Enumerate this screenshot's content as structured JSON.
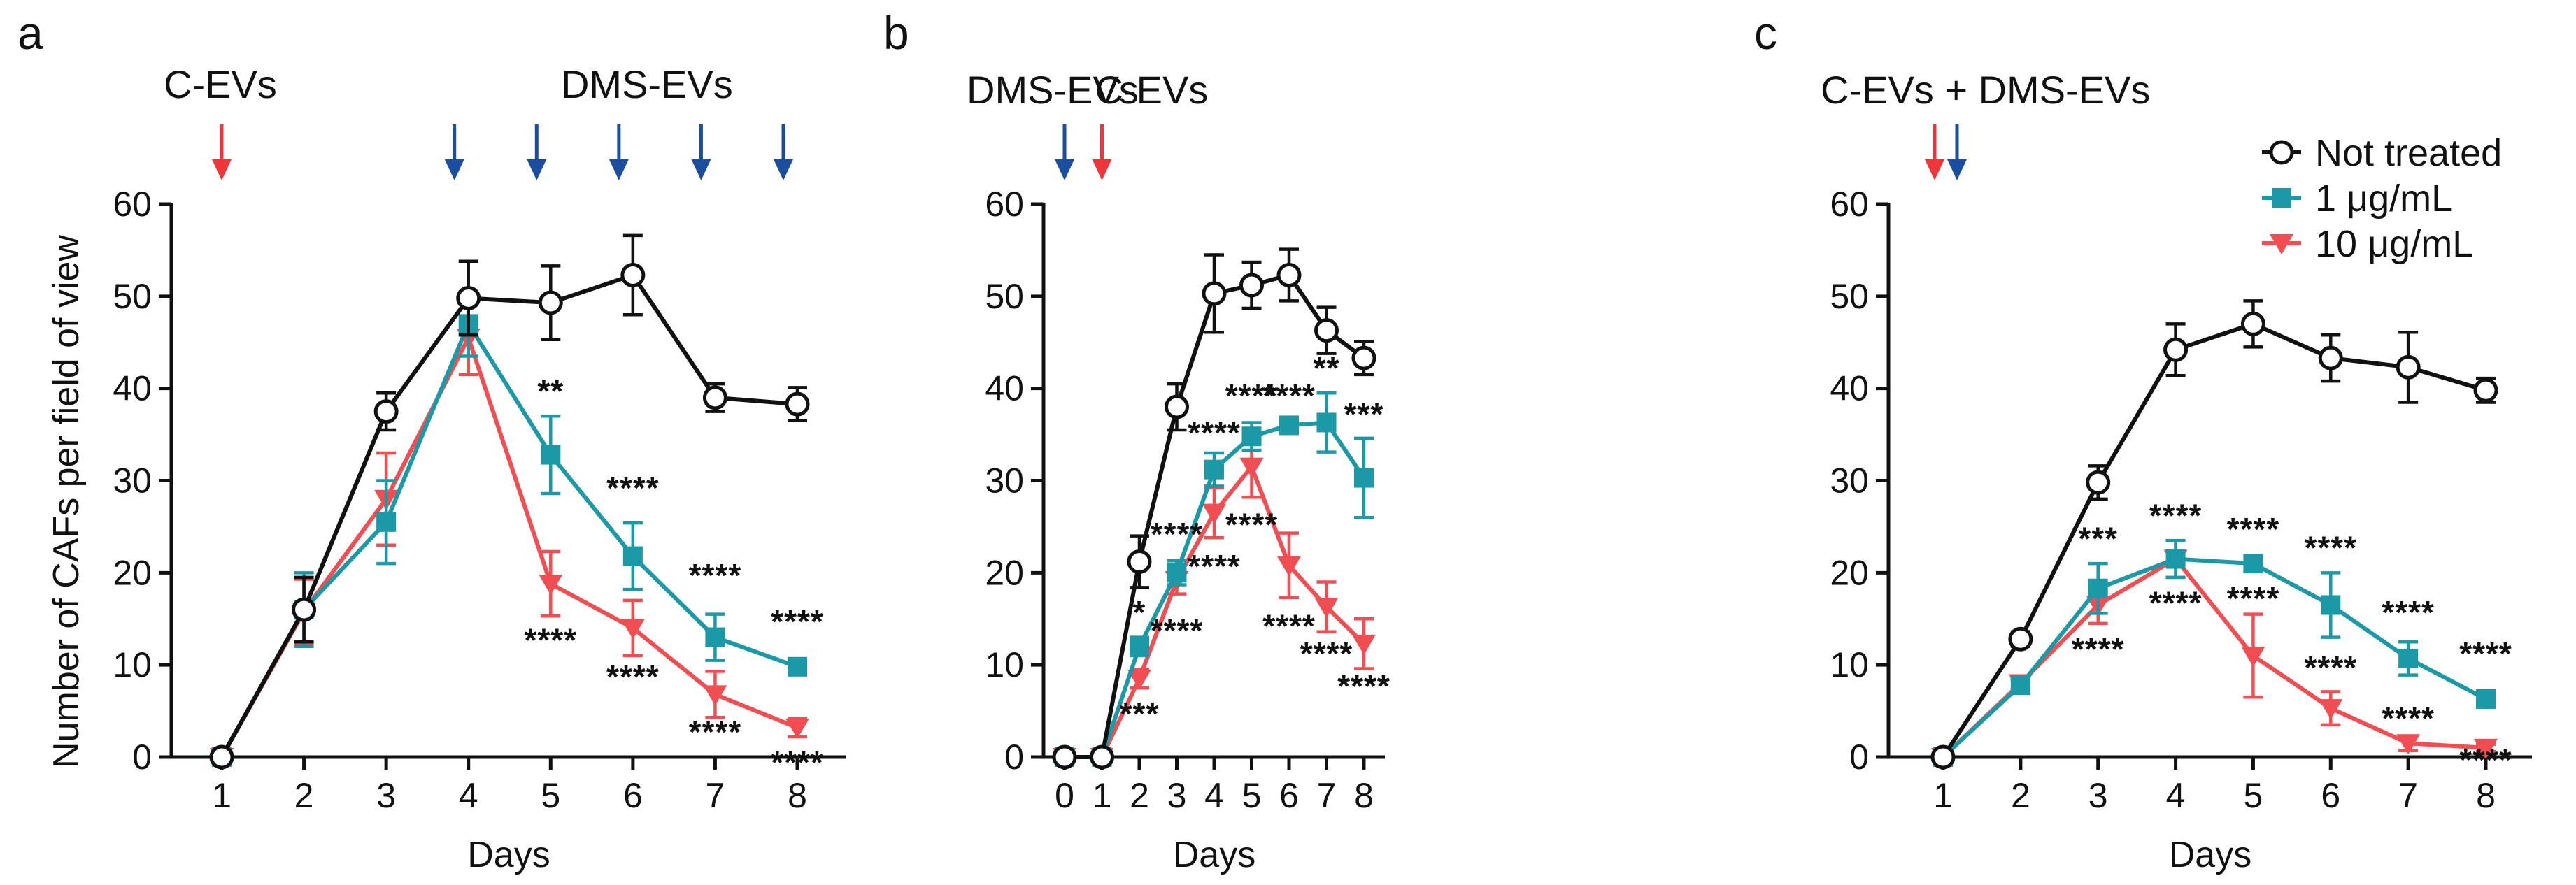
{
  "colors": {
    "not_treated": "#111111",
    "low_dose": "#1b99a6",
    "high_dose": "#f04e52",
    "arrow_red": "#f0363a",
    "arrow_blue": "#1c4ea0"
  },
  "ylabel": "Number of CAFs per field of view",
  "legend": {
    "items": [
      {
        "label": "Not treated",
        "color": "#111111",
        "marker": "circle"
      },
      {
        "label": "1 μg/mL",
        "color": "#1b99a6",
        "marker": "square"
      },
      {
        "label": "10 μg/mL",
        "color": "#f04e52",
        "marker": "triangle"
      }
    ]
  },
  "chart_data": [
    {
      "panel": "a",
      "type": "line",
      "xlabel": "Days",
      "ylim": [
        0,
        60
      ],
      "yticks": [
        0,
        10,
        20,
        30,
        40,
        50,
        60
      ],
      "xticks": [
        1,
        2,
        3,
        4,
        5,
        6,
        7,
        8
      ],
      "treatments": [
        {
          "label": "C-EVs",
          "color": "red",
          "days": [
            1
          ]
        },
        {
          "label": "DMS-EVs",
          "color": "blue",
          "days": [
            4,
            5,
            6,
            7,
            8
          ]
        }
      ],
      "series": [
        {
          "name": "Not treated",
          "x": [
            1,
            2,
            3,
            4,
            5,
            6,
            7,
            8
          ],
          "y": [
            0,
            16,
            37.5,
            49.8,
            49.3,
            52.3,
            39,
            38.3
          ],
          "err": [
            0,
            3.5,
            2,
            4,
            4,
            4.3,
            1.5,
            1.8
          ]
        },
        {
          "name": "1 μg/mL",
          "x": [
            1,
            2,
            3,
            4,
            5,
            6,
            7,
            8
          ],
          "y": [
            0,
            16,
            25.5,
            47,
            32.8,
            21.8,
            13,
            9.8
          ],
          "err": [
            0,
            4,
            4.5,
            3.5,
            4.2,
            3.6,
            2.5,
            0.8
          ]
        },
        {
          "name": "10 μg/mL",
          "x": [
            1,
            2,
            3,
            4,
            5,
            6,
            7,
            8
          ],
          "y": [
            0,
            15.8,
            28,
            45.5,
            18.8,
            14,
            6.8,
            3.2
          ],
          "err": [
            0,
            3.5,
            5,
            4,
            3.5,
            3,
            2.5,
            1
          ]
        }
      ],
      "annotations": [
        {
          "text": "**",
          "x": 5,
          "y": 38.5
        },
        {
          "text": "****",
          "x": 6,
          "y": 28
        },
        {
          "text": "****",
          "x": 7,
          "y": 18.5
        },
        {
          "text": "****",
          "x": 8,
          "y": 13.5
        },
        {
          "text": "****",
          "x": 5,
          "y": 11.5
        },
        {
          "text": "****",
          "x": 6,
          "y": 7.5
        },
        {
          "text": "****",
          "x": 7,
          "y": 1.5
        },
        {
          "text": "****",
          "x": 8,
          "y": -1.8
        }
      ]
    },
    {
      "panel": "b",
      "type": "line",
      "xlabel": "Days",
      "ylim": [
        0,
        60
      ],
      "yticks": [
        0,
        10,
        20,
        30,
        40,
        50,
        60
      ],
      "xticks": [
        0,
        1,
        2,
        3,
        4,
        5,
        6,
        7,
        8
      ],
      "treatments": [
        {
          "label": "DMS-EVs",
          "color": "blue",
          "days": [
            0
          ]
        },
        {
          "label": "C-EVs",
          "color": "red",
          "days": [
            1
          ]
        }
      ],
      "series": [
        {
          "name": "Not treated",
          "x": [
            0,
            1,
            2,
            3,
            4,
            5,
            6,
            7,
            8
          ],
          "y": [
            0,
            0,
            21.2,
            38,
            50.3,
            51.2,
            52.3,
            46.3,
            43.3
          ],
          "err": [
            0,
            0,
            2.8,
            2.5,
            4.2,
            2.5,
            2.8,
            2.5,
            1.8
          ]
        },
        {
          "name": "1 μg/mL",
          "x": [
            0,
            1,
            2,
            3,
            4,
            5,
            6,
            7,
            8
          ],
          "y": [
            0,
            0,
            12,
            20,
            31.2,
            34.8,
            36,
            36.3,
            30.3
          ],
          "err": [
            0,
            0,
            1,
            1.3,
            1.8,
            1.5,
            0.5,
            3.2,
            4.3
          ]
        },
        {
          "name": "10 μg/mL",
          "x": [
            0,
            1,
            2,
            3,
            4,
            5,
            6,
            7,
            8
          ],
          "y": [
            0,
            0,
            8.5,
            19.2,
            26.5,
            31.5,
            20.8,
            16.3,
            12.3
          ],
          "err": [
            0,
            0,
            1,
            1.5,
            2.7,
            3.3,
            3.5,
            2.7,
            2.7
          ]
        }
      ],
      "annotations": [
        {
          "text": "*",
          "x": 2,
          "y": 14.5
        },
        {
          "text": "****",
          "x": 3,
          "y": 23
        },
        {
          "text": "****",
          "x": 4,
          "y": 34
        },
        {
          "text": "****",
          "x": 5,
          "y": 38
        },
        {
          "text": "****",
          "x": 6,
          "y": 38
        },
        {
          "text": "**",
          "x": 7,
          "y": 41
        },
        {
          "text": "***",
          "x": 8,
          "y": 36
        },
        {
          "text": "***",
          "x": 2,
          "y": 3.5
        },
        {
          "text": "****",
          "x": 3,
          "y": 12.5
        },
        {
          "text": "****",
          "x": 4,
          "y": 19.5
        },
        {
          "text": "****",
          "x": 5,
          "y": 24
        },
        {
          "text": "****",
          "x": 6,
          "y": 13
        },
        {
          "text": "****",
          "x": 7,
          "y": 10
        },
        {
          "text": "****",
          "x": 8,
          "y": 6.5
        }
      ]
    },
    {
      "panel": "c",
      "type": "line",
      "xlabel": "Days",
      "ylim": [
        0,
        60
      ],
      "yticks": [
        0,
        10,
        20,
        30,
        40,
        50,
        60
      ],
      "xticks": [
        1,
        2,
        3,
        4,
        5,
        6,
        7,
        8
      ],
      "treatments": [
        {
          "label": "C-EVs + DMS-EVs",
          "color": "both",
          "days": [
            1
          ]
        }
      ],
      "series": [
        {
          "name": "Not treated",
          "x": [
            1,
            2,
            3,
            4,
            5,
            6,
            7,
            8
          ],
          "y": [
            0,
            12.8,
            29.8,
            44.2,
            47,
            43.3,
            42.3,
            39.8
          ],
          "err": [
            0,
            0.8,
            1.8,
            2.8,
            2.5,
            2.5,
            3.8,
            1.3
          ]
        },
        {
          "name": "1 μg/mL",
          "x": [
            1,
            2,
            3,
            4,
            5,
            6,
            7,
            8
          ],
          "y": [
            0,
            7.8,
            18.3,
            21.5,
            21,
            16.5,
            10.7,
            6.3
          ],
          "err": [
            0,
            0.5,
            2.7,
            2,
            0.8,
            3.5,
            1.8,
            0.8
          ]
        },
        {
          "name": "10 μg/mL",
          "x": [
            1,
            2,
            3,
            4,
            5,
            6,
            7,
            8
          ],
          "y": [
            0,
            8,
            16.5,
            21.5,
            11,
            5.3,
            1.5,
            1
          ],
          "err": [
            0,
            0.5,
            2,
            2,
            4.5,
            1.8,
            0.8,
            0.4
          ]
        }
      ],
      "annotations": [
        {
          "text": "***",
          "x": 3,
          "y": 22.5
        },
        {
          "text": "****",
          "x": 4,
          "y": 25
        },
        {
          "text": "****",
          "x": 5,
          "y": 23.5
        },
        {
          "text": "****",
          "x": 6,
          "y": 21.5
        },
        {
          "text": "****",
          "x": 7,
          "y": 14.5
        },
        {
          "text": "****",
          "x": 8,
          "y": 10
        },
        {
          "text": "****",
          "x": 3,
          "y": 10.5
        },
        {
          "text": "****",
          "x": 4,
          "y": 15.5
        },
        {
          "text": "****",
          "x": 5,
          "y": 16
        },
        {
          "text": "****",
          "x": 6,
          "y": 8.5
        },
        {
          "text": "****",
          "x": 7,
          "y": 3
        },
        {
          "text": "****",
          "x": 8,
          "y": -1.5
        }
      ]
    }
  ]
}
